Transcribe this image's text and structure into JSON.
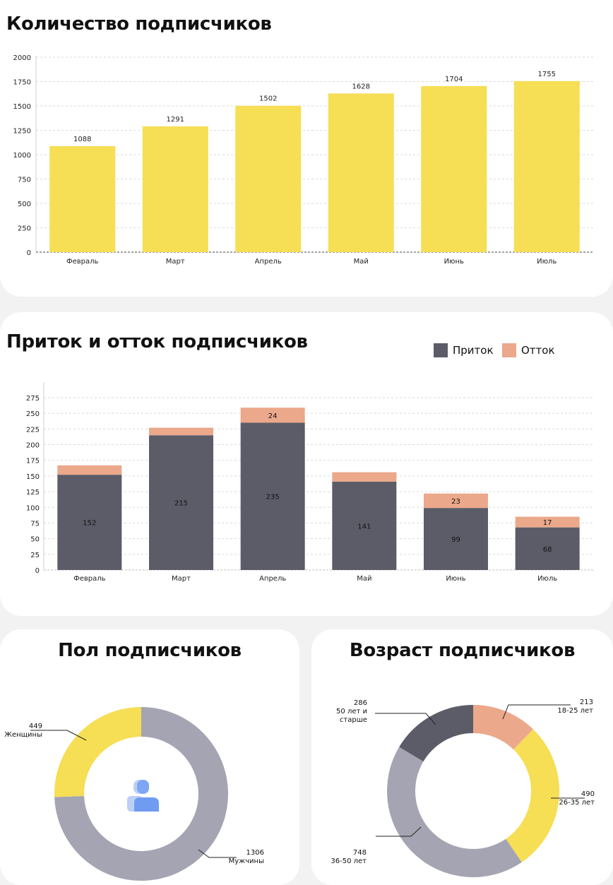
{
  "titles": {
    "count": "Количество подписчиков",
    "flow": "Приток и отток подписчиков",
    "gender": "Пол подписчиков",
    "age": "Возраст подписчиков"
  },
  "colors": {
    "yellow": "#f6de55",
    "dark": "#5c5c68",
    "salmon": "#eba88a",
    "grey": "#a5a4b2",
    "icon_blue": "#6f9cf0"
  },
  "chart_data": [
    {
      "type": "bar",
      "title": "Количество подписчиков",
      "categories": [
        "Февраль",
        "Март",
        "Апрель",
        "Май",
        "Июнь",
        "Июль"
      ],
      "values": [
        1088,
        1291,
        1502,
        1628,
        1704,
        1755
      ],
      "yticks": [
        "0",
        "250",
        "500",
        "750",
        "1000",
        "1250",
        "1500",
        "1750",
        "2000"
      ],
      "ylim": [
        0,
        2000
      ],
      "grid": true,
      "color": "#f6de55"
    },
    {
      "type": "bar",
      "stacked": true,
      "title": "Приток и отток подписчиков",
      "categories": [
        "Февраль",
        "Март",
        "Апрель",
        "Май",
        "Июнь",
        "Июль"
      ],
      "series": [
        {
          "name": "Приток",
          "values": [
            152,
            215,
            235,
            141,
            99,
            68
          ],
          "labels": [
            "152",
            "215",
            "235",
            "141",
            "99",
            "68"
          ],
          "color": "#5c5c68"
        },
        {
          "name": "Отток",
          "values": [
            15,
            12,
            24,
            15,
            23,
            17
          ],
          "labels": [
            "",
            "",
            "24",
            "",
            "23",
            "17"
          ],
          "color": "#eba88a"
        }
      ],
      "yticks": [
        "0",
        "25",
        "50",
        "75",
        "100",
        "125",
        "150",
        "175",
        "200",
        "225",
        "250",
        "275"
      ],
      "ylim": [
        0,
        275
      ],
      "grid": true,
      "legend": "top-right"
    },
    {
      "type": "pie",
      "donut": true,
      "title": "Пол подписчиков",
      "slices": [
        {
          "value": 1306,
          "value_label": "1306",
          "label": "Мужчины",
          "color": "#a5a4b2"
        },
        {
          "value": 449,
          "value_label": "449",
          "label": "Женщины",
          "color": "#f6de55"
        }
      ]
    },
    {
      "type": "pie",
      "donut": true,
      "title": "Возраст подписчиков",
      "slices": [
        {
          "value": 213,
          "value_label": "213",
          "label": "18-25 лет",
          "color": "#eba88a"
        },
        {
          "value": 490,
          "value_label": "490",
          "label": "26-35 лет",
          "color": "#f6de55"
        },
        {
          "value": 748,
          "value_label": "748",
          "label": "36-50 лет",
          "color": "#a5a4b2"
        },
        {
          "value": 286,
          "value_label": "286",
          "label": "50 лет и старше",
          "color": "#5c5c68"
        }
      ]
    }
  ]
}
